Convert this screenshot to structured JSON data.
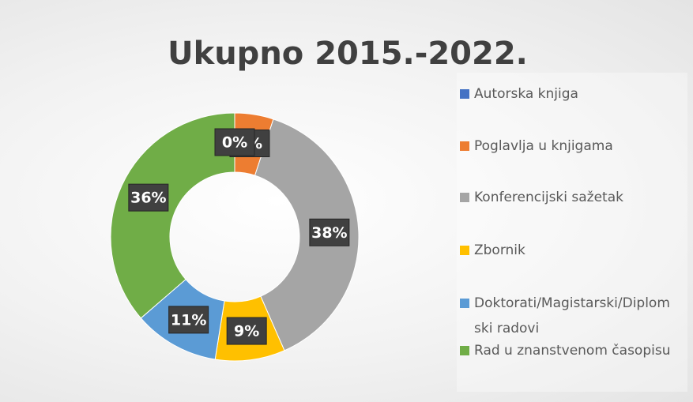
{
  "chart_data": {
    "type": "donut",
    "title": "Ukupno 2015.-2022.",
    "categories": [
      "Autorska knjiga",
      "Poglavlja u knjigama",
      "Konferencijski sažetak",
      "Zbornik",
      "Doktorati/Magistarski/Diplomski radovi",
      "Rad u znanstvenom časopisu"
    ],
    "values": [
      0,
      5,
      38,
      9,
      11,
      36
    ],
    "value_labels": [
      "0%",
      "5%",
      "38%",
      "9%",
      "11%",
      "36%"
    ],
    "colors": [
      "#4472c4",
      "#ed7d31",
      "#a5a5a5",
      "#ffc000",
      "#5b9bd5",
      "#70ad47"
    ],
    "legend": "right"
  }
}
